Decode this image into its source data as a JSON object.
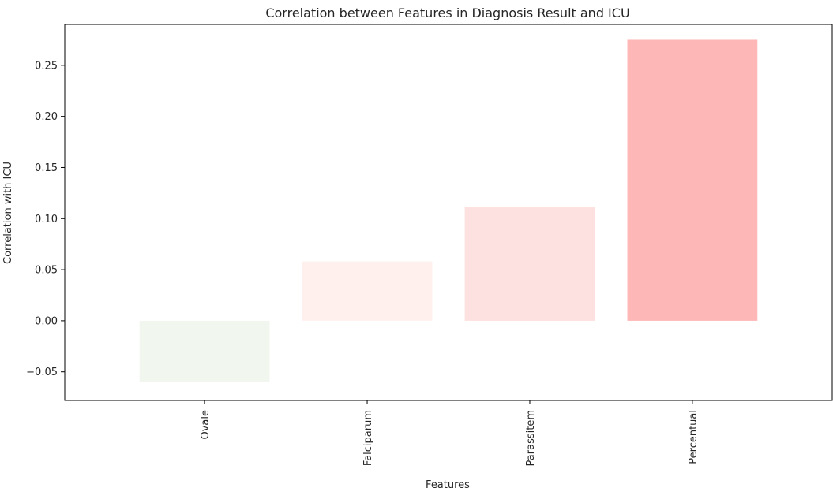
{
  "chart_data": {
    "type": "bar",
    "title": "Correlation between Features in Diagnosis Result and ICU",
    "xlabel": "Features",
    "ylabel": "Correlation with ICU",
    "categories": [
      "Ovale",
      "Falciparum",
      "Parassitem",
      "Percentual"
    ],
    "values": [
      -0.06,
      0.058,
      0.111,
      0.275
    ],
    "bar_colors": [
      "#f1f7ee",
      "#fff0ee",
      "#fde1e0",
      "#feb7b7"
    ],
    "ylim": [
      -0.078,
      0.29
    ],
    "yticks": [
      -0.05,
      0.0,
      0.05,
      0.1,
      0.15,
      0.2,
      0.25
    ],
    "ytick_labels": [
      "−0.05",
      "0.00",
      "0.05",
      "0.10",
      "0.15",
      "0.20",
      "0.25"
    ],
    "grid": false,
    "legend": "none"
  }
}
